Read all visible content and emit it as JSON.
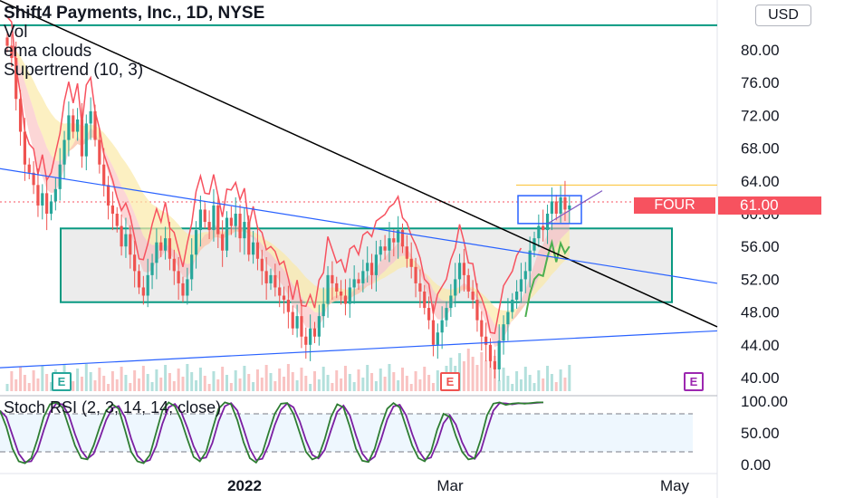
{
  "header": {
    "title": "Shift4 Payments, Inc., 1D, NYSE",
    "indicators": [
      "Vol",
      "ema clouds",
      "Supertrend (10, 3)"
    ],
    "currency_button": "USD"
  },
  "price_tag": {
    "ticker": "FOUR",
    "value": "61.00"
  },
  "colors": {
    "up": "#26a69a",
    "down": "#ef5350",
    "supertrend_up": "#4caf50",
    "supertrend_down": "#f7525f",
    "cloud_red": "#f9b4b4",
    "cloud_yellow": "#fbe9a8",
    "rsi_k": "#2e7d32",
    "rsi_d": "#7b1fa2",
    "trendline_blue": "#2962ff",
    "trendline_black": "#000000"
  },
  "earnings_markers": [
    {
      "label": "E",
      "date": "2021-11-04",
      "color": "#26a69a"
    },
    {
      "label": "E",
      "date": "2022-02-24",
      "color": "#ef5350"
    },
    {
      "label": "E",
      "date": "2022-05-05",
      "color": "#9c27b0"
    }
  ],
  "chart_data": [
    {
      "type": "candlestick",
      "title": "Shift4 Payments, Inc., 1D, NYSE",
      "x_tick_labels": [
        "2022",
        "Mar",
        "May"
      ],
      "ylim": [
        38,
        86
      ],
      "y_ticks": [
        "40.00",
        "44.00",
        "48.00",
        "52.00",
        "56.00",
        "60.00",
        "64.00",
        "68.00",
        "72.00",
        "76.00",
        "80.00"
      ],
      "last_price": 61.0,
      "horizontal_line": 83.0,
      "range_box": {
        "low": 49.2,
        "high": 58.2
      },
      "closes": [
        80.5,
        79.0,
        74.0,
        70.0,
        66.0,
        65.0,
        63.5,
        61.0,
        62.5,
        60.0,
        61.5,
        63.0,
        66.0,
        69.0,
        72.0,
        70.0,
        71.5,
        67.0,
        71.0,
        72.5,
        69.0,
        66.0,
        63.5,
        61.0,
        60.0,
        58.5,
        56.0,
        57.5,
        55.0,
        53.0,
        51.0,
        50.0,
        52.5,
        54.0,
        56.5,
        55.5,
        57.0,
        54.5,
        53.0,
        51.5,
        50.0,
        52.0,
        55.0,
        58.0,
        60.5,
        59.0,
        58.0,
        61.0,
        57.5,
        55.5,
        59.5,
        58.5,
        60.0,
        57.0,
        59.0,
        55.0,
        56.5,
        54.5,
        53.0,
        51.5,
        52.5,
        51.0,
        50.0,
        49.5,
        48.0,
        46.0,
        47.5,
        45.0,
        44.0,
        46.0,
        45.0,
        47.5,
        49.0,
        52.5,
        51.5,
        50.5,
        50.0,
        49.0,
        51.0,
        52.0,
        51.5,
        53.0,
        54.0,
        52.5,
        55.0,
        56.0,
        55.5,
        57.0,
        56.5,
        58.0,
        56.0,
        54.5,
        53.5,
        51.5,
        50.5,
        48.5,
        47.0,
        44.0,
        45.5,
        47.0,
        48.5,
        50.0,
        52.0,
        54.0,
        52.5,
        50.5,
        49.5,
        47.0,
        45.0,
        44.0,
        42.0,
        41.0,
        44.5,
        46.5,
        48.0,
        49.5,
        50.5,
        52.0,
        53.0,
        55.5,
        57.0,
        58.5,
        58.0,
        60.0,
        61.5,
        60.0,
        62.0,
        60.5,
        61.0
      ],
      "trendlines": [
        {
          "color": "#000000",
          "from": [
            0,
            86.0
          ],
          "to": [
            140,
            46.2
          ]
        },
        {
          "color": "#2962ff",
          "from": [
            0,
            65.5
          ],
          "to": [
            140,
            51.5
          ]
        },
        {
          "color": "#2962ff",
          "from": [
            0,
            41.2
          ],
          "to": [
            140,
            45.7
          ]
        }
      ]
    },
    {
      "type": "line",
      "title": "Stoch RSI (2, 3, 14, 14, close)",
      "ylim": [
        -5,
        110
      ],
      "y_ticks": [
        "0.00",
        "50.00",
        "100.00"
      ],
      "bands": [
        20,
        80
      ],
      "series": [
        {
          "name": "K",
          "values": [
            85,
            60,
            25,
            5,
            2,
            10,
            40,
            75,
            95,
            98,
            90,
            60,
            30,
            10,
            8,
            30,
            60,
            85,
            95,
            88,
            55,
            20,
            5,
            2,
            15,
            50,
            85,
            98,
            92,
            70,
            40,
            12,
            5,
            20,
            55,
            88,
            98,
            95,
            70,
            35,
            10,
            3,
            18,
            50,
            80,
            96,
            97,
            80,
            50,
            20,
            8,
            12,
            40,
            75,
            95,
            90,
            60,
            25,
            6,
            4,
            25,
            60,
            88,
            97,
            90,
            60,
            30,
            10,
            5,
            20,
            55,
            80,
            75,
            45,
            20,
            8,
            10,
            40,
            78,
            96,
            98,
            94,
            96,
            97,
            96,
            97,
            98,
            98
          ]
        }
      ]
    }
  ]
}
